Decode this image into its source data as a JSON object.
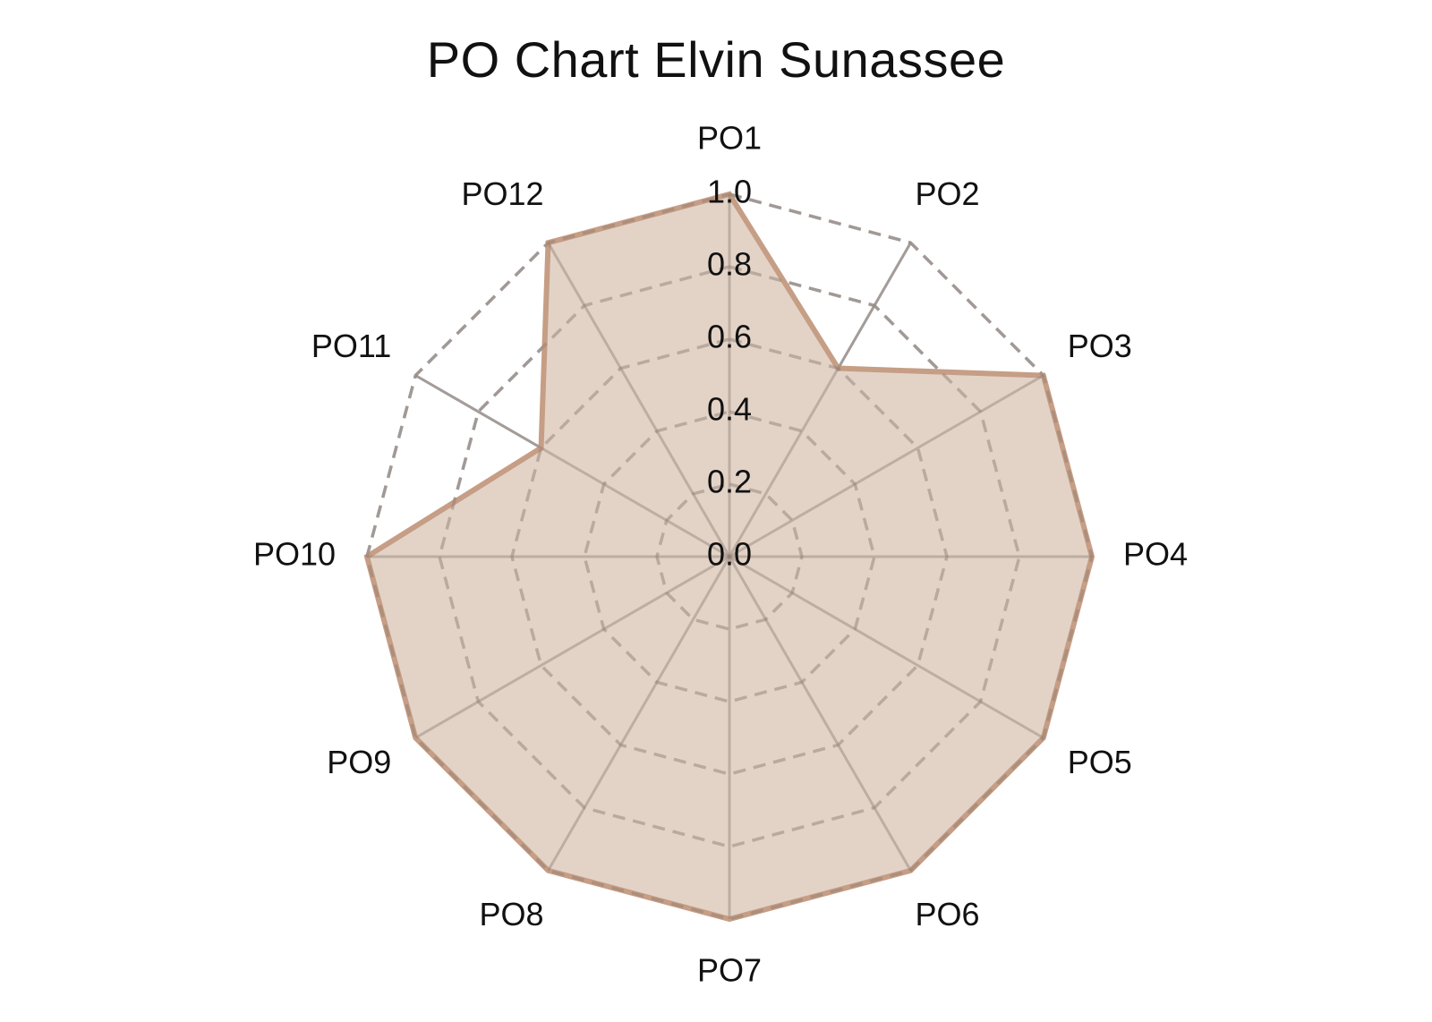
{
  "chart_data": {
    "type": "radar",
    "title": "PO Chart Elvin Sunassee",
    "categories": [
      "PO1",
      "PO2",
      "PO3",
      "PO4",
      "PO5",
      "PO6",
      "PO7",
      "PO8",
      "PO9",
      "PO10",
      "PO11",
      "PO12"
    ],
    "values": [
      1.0,
      0.6,
      1.0,
      1.0,
      1.0,
      1.0,
      1.0,
      1.0,
      1.0,
      1.0,
      0.6,
      1.0
    ],
    "rlim": [
      0.0,
      1.0
    ],
    "ticks": [
      "0.0",
      "0.2",
      "0.4",
      "0.6",
      "0.8",
      "1.0"
    ],
    "grid": true,
    "colors": {
      "fill": "#e2d1c4",
      "line": "#c69e85",
      "grid": "#b3b3b3"
    }
  }
}
